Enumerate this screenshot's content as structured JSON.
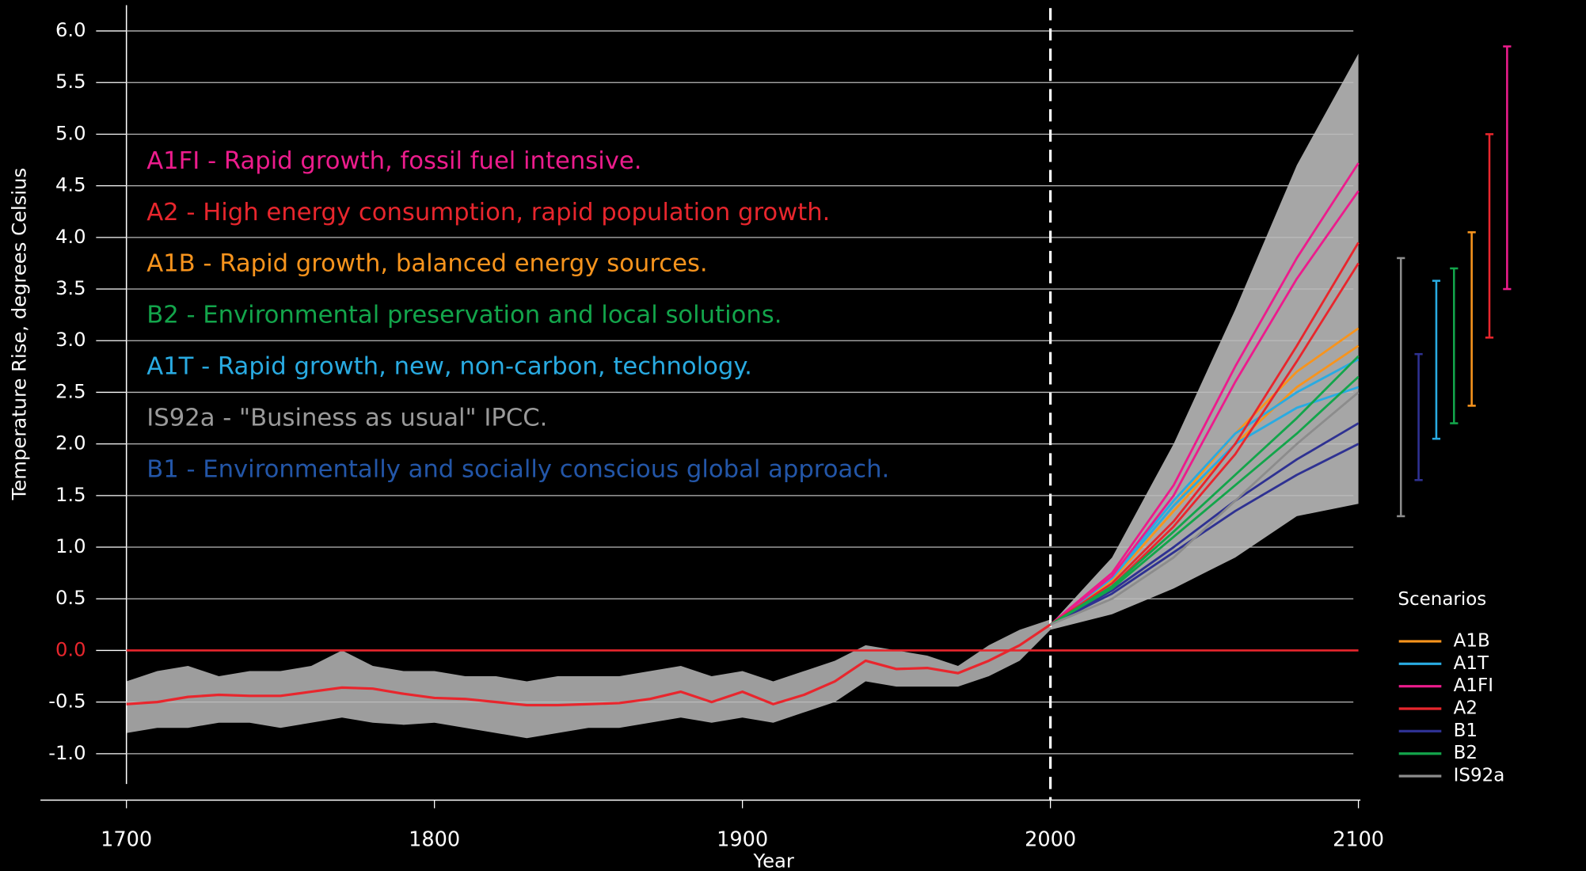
{
  "chart_data": {
    "type": "line",
    "y_label": "Temperature Rise, degrees Celsius",
    "x_label": "Year",
    "xlim": [
      1700,
      2100
    ],
    "ylim": [
      -1.45,
      6.25
    ],
    "xticks": [
      1700,
      1800,
      1900,
      2000,
      2100
    ],
    "yticks": [
      {
        "value": 6,
        "label": "6.0"
      },
      5.5,
      {
        "value": 5,
        "label": "5.0"
      },
      4.5,
      {
        "value": 4,
        "label": "4.0"
      },
      3.5,
      {
        "value": 3,
        "label": "3.0"
      },
      2.5,
      {
        "value": 2,
        "label": "2.0"
      },
      1.5,
      {
        "value": 1,
        "label": "1.0"
      },
      0.5,
      {
        "value": 0,
        "label": "0.0"
      },
      -0.5,
      {
        "value": -1,
        "label": "-1.0"
      }
    ],
    "grid": true,
    "divider_x": 2000,
    "annotations": [
      {
        "text": "A1FI - Rapid growth, fossil fuel intensive.",
        "color": "#ec1c8c"
      },
      {
        "text": "A2 - High energy consumption, rapid population growth.",
        "color": "#e8262d"
      },
      {
        "text": "A1B - Rapid growth, balanced energy sources.",
        "color": "#f7941d"
      },
      {
        "text": "B2 - Environmental preservation and local solutions.",
        "color": "#13a54b"
      },
      {
        "text": "A1T - Rapid growth, new, non-carbon, technology.",
        "color": "#29abe2"
      },
      {
        "text": "IS92a - \"Business as usual\" IPCC.",
        "color": "#9a9a9a"
      },
      {
        "text": "B1 - Environmentally and socially conscious  global approach.",
        "color": "#2356a8"
      }
    ],
    "legend_title": "Scenarios",
    "history": {
      "color": "#e8262d",
      "band_color": "#9d9d9d",
      "x": [
        1700,
        1710,
        1720,
        1730,
        1740,
        1750,
        1760,
        1770,
        1780,
        1790,
        1800,
        1810,
        1820,
        1830,
        1840,
        1850,
        1860,
        1870,
        1880,
        1890,
        1900,
        1910,
        1920,
        1930,
        1940,
        1950,
        1960,
        1970,
        1980,
        1990,
        2000
      ],
      "values": [
        -0.52,
        -0.5,
        -0.45,
        -0.43,
        -0.44,
        -0.44,
        -0.4,
        -0.36,
        -0.37,
        -0.42,
        -0.46,
        -0.47,
        -0.5,
        -0.53,
        -0.53,
        -0.52,
        -0.51,
        -0.47,
        -0.4,
        -0.5,
        -0.4,
        -0.52,
        -0.43,
        -0.3,
        -0.1,
        -0.18,
        -0.17,
        -0.22,
        -0.1,
        0.05,
        0.25
      ],
      "band_upper": [
        -0.3,
        -0.2,
        -0.15,
        -0.25,
        -0.2,
        -0.2,
        -0.15,
        0.0,
        -0.15,
        -0.2,
        -0.2,
        -0.25,
        -0.25,
        -0.3,
        -0.25,
        -0.25,
        -0.25,
        -0.2,
        -0.15,
        -0.25,
        -0.2,
        -0.3,
        -0.2,
        -0.1,
        0.05,
        0.0,
        -0.05,
        -0.15,
        0.05,
        0.2,
        0.3
      ],
      "band_lower": [
        -0.8,
        -0.75,
        -0.75,
        -0.7,
        -0.7,
        -0.75,
        -0.7,
        -0.65,
        -0.7,
        -0.72,
        -0.7,
        -0.75,
        -0.8,
        -0.85,
        -0.8,
        -0.75,
        -0.75,
        -0.7,
        -0.65,
        -0.7,
        -0.65,
        -0.7,
        -0.6,
        -0.5,
        -0.3,
        -0.35,
        -0.35,
        -0.35,
        -0.25,
        -0.1,
        0.2
      ]
    },
    "scenario_x": [
      2000,
      2020,
      2040,
      2060,
      2080,
      2100
    ],
    "band_color": "#a6a6a6",
    "band_upper": [
      0.25,
      0.9,
      2.0,
      3.3,
      4.7,
      5.78
    ],
    "band_lower": [
      0.2,
      0.35,
      0.6,
      0.9,
      1.3,
      1.42
    ],
    "series": [
      {
        "name": "A1B",
        "color": "#f7941d",
        "runs": [
          [
            0.25,
            0.7,
            1.4,
            2.1,
            2.7,
            3.12
          ],
          [
            0.25,
            0.68,
            1.35,
            2.0,
            2.55,
            2.95
          ]
        ],
        "range": [
          2.37,
          4.05
        ]
      },
      {
        "name": "A1T",
        "color": "#29abe2",
        "runs": [
          [
            0.25,
            0.72,
            1.45,
            2.1,
            2.5,
            2.82
          ],
          [
            0.25,
            0.7,
            1.4,
            2.0,
            2.35,
            2.55
          ]
        ],
        "range": [
          2.05,
          3.58
        ]
      },
      {
        "name": "A1FI",
        "color": "#ec1c8c",
        "runs": [
          [
            0.25,
            0.75,
            1.6,
            2.75,
            3.8,
            4.72
          ],
          [
            0.25,
            0.72,
            1.5,
            2.6,
            3.6,
            4.45
          ]
        ],
        "range": [
          3.5,
          5.85
        ]
      },
      {
        "name": "A2",
        "color": "#e8262d",
        "runs": [
          [
            0.25,
            0.65,
            1.25,
            2.0,
            2.95,
            3.95
          ],
          [
            0.25,
            0.62,
            1.2,
            1.9,
            2.8,
            3.75
          ]
        ],
        "range": [
          3.03,
          5.0
        ]
      },
      {
        "name": "B1",
        "color": "#2e3192",
        "runs": [
          [
            0.25,
            0.58,
            1.0,
            1.45,
            1.85,
            2.2
          ],
          [
            0.25,
            0.55,
            0.95,
            1.35,
            1.7,
            2.0
          ]
        ],
        "range": [
          1.65,
          2.87
        ]
      },
      {
        "name": "B2",
        "color": "#13a54b",
        "runs": [
          [
            0.25,
            0.62,
            1.15,
            1.7,
            2.25,
            2.85
          ],
          [
            0.25,
            0.6,
            1.1,
            1.6,
            2.1,
            2.65
          ]
        ],
        "range": [
          2.2,
          3.7
        ]
      },
      {
        "name": "IS92a",
        "color": "#8c8c8c",
        "runs": [
          [
            0.25,
            0.5,
            0.9,
            1.45,
            2.0,
            2.5
          ]
        ],
        "range": [
          1.3,
          3.8
        ]
      }
    ]
  }
}
